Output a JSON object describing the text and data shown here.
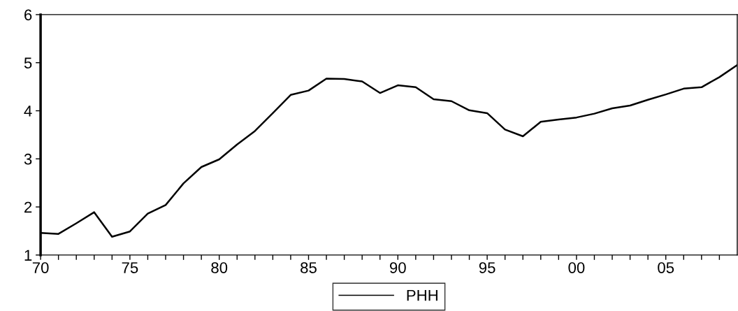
{
  "chart_data": {
    "type": "line",
    "x": [
      1970,
      1971,
      1972,
      1973,
      1974,
      1975,
      1976,
      1977,
      1978,
      1979,
      1980,
      1981,
      1982,
      1983,
      1984,
      1985,
      1986,
      1987,
      1988,
      1989,
      1990,
      1991,
      1992,
      1993,
      1994,
      1995,
      1996,
      1997,
      1998,
      1999,
      2000,
      2001,
      2002,
      2003,
      2004,
      2005,
      2006,
      2007,
      2008,
      2009
    ],
    "series": [
      {
        "name": "PHH",
        "color": "#000000",
        "values": [
          1.46,
          1.44,
          1.66,
          1.89,
          1.38,
          1.49,
          1.86,
          2.04,
          2.49,
          2.83,
          2.99,
          3.3,
          3.58,
          3.95,
          4.33,
          4.42,
          4.67,
          4.66,
          4.61,
          4.37,
          4.53,
          4.49,
          4.24,
          4.2,
          4.01,
          3.95,
          3.61,
          3.47,
          3.77,
          3.82,
          3.86,
          3.94,
          4.05,
          4.11,
          4.23,
          4.34,
          4.46,
          4.49,
          4.7,
          4.95
        ]
      }
    ],
    "xlim": [
      1970,
      2009
    ],
    "xticks": [
      {
        "value": 1970,
        "label": "70"
      },
      {
        "value": 1971,
        "label": null
      },
      {
        "value": 1972,
        "label": null
      },
      {
        "value": 1973,
        "label": null
      },
      {
        "value": 1974,
        "label": null
      },
      {
        "value": 1975,
        "label": "75"
      },
      {
        "value": 1976,
        "label": null
      },
      {
        "value": 1977,
        "label": null
      },
      {
        "value": 1978,
        "label": null
      },
      {
        "value": 1979,
        "label": null
      },
      {
        "value": 1980,
        "label": "80"
      },
      {
        "value": 1981,
        "label": null
      },
      {
        "value": 1982,
        "label": null
      },
      {
        "value": 1983,
        "label": null
      },
      {
        "value": 1984,
        "label": null
      },
      {
        "value": 1985,
        "label": "85"
      },
      {
        "value": 1986,
        "label": null
      },
      {
        "value": 1987,
        "label": null
      },
      {
        "value": 1988,
        "label": null
      },
      {
        "value": 1989,
        "label": null
      },
      {
        "value": 1990,
        "label": "90"
      },
      {
        "value": 1991,
        "label": null
      },
      {
        "value": 1992,
        "label": null
      },
      {
        "value": 1993,
        "label": null
      },
      {
        "value": 1994,
        "label": null
      },
      {
        "value": 1995,
        "label": "95"
      },
      {
        "value": 1996,
        "label": null
      },
      {
        "value": 1997,
        "label": null
      },
      {
        "value": 1998,
        "label": null
      },
      {
        "value": 1999,
        "label": null
      },
      {
        "value": 2000,
        "label": "00"
      },
      {
        "value": 2001,
        "label": null
      },
      {
        "value": 2002,
        "label": null
      },
      {
        "value": 2003,
        "label": null
      },
      {
        "value": 2004,
        "label": null
      },
      {
        "value": 2005,
        "label": "05"
      },
      {
        "value": 2006,
        "label": null
      },
      {
        "value": 2007,
        "label": null
      },
      {
        "value": 2008,
        "label": null
      }
    ],
    "ylim": [
      1,
      6
    ],
    "yticks": [
      1,
      2,
      3,
      4,
      5,
      6
    ],
    "grid": false,
    "legend": "bottom",
    "marker": "none",
    "line_style": "solid"
  }
}
